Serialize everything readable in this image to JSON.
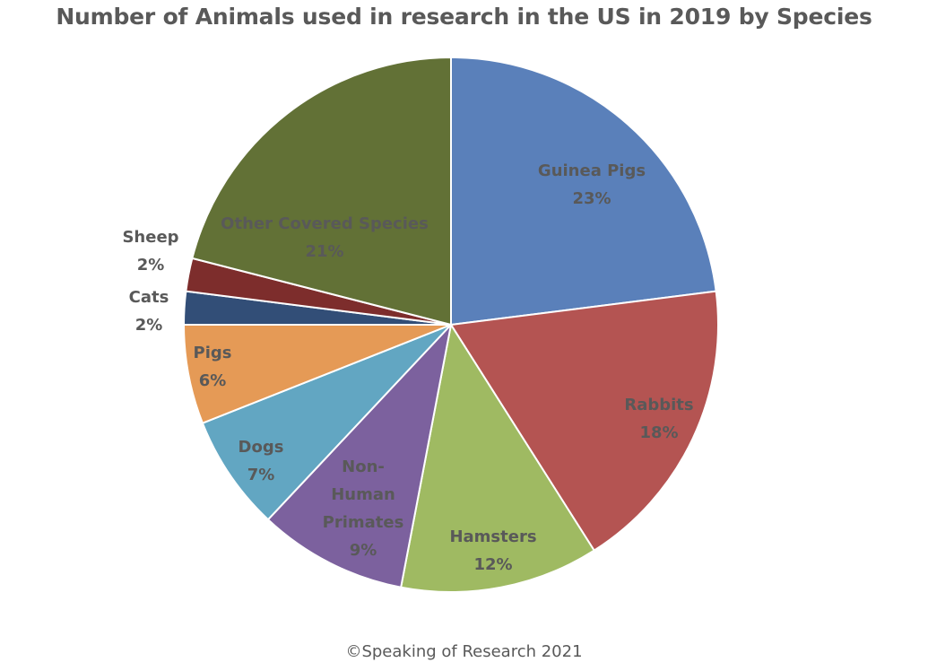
{
  "chart_data": {
    "type": "pie",
    "title": "Number of Animals used in research in the US in 2019 by Species",
    "slices": [
      {
        "label": "Guinea Pigs",
        "percent_label": "23%",
        "value": 23,
        "color": "#5a80ba"
      },
      {
        "label": "Rabbits",
        "percent_label": "18%",
        "value": 18,
        "color": "#b45452"
      },
      {
        "label": "Hamsters",
        "percent_label": "12%",
        "value": 12,
        "color": "#9fba62"
      },
      {
        "label": "Non-Human Primates",
        "percent_label": "9%",
        "value": 9,
        "color": "#7c619e"
      },
      {
        "label": "Dogs",
        "percent_label": "7%",
        "value": 7,
        "color": "#62a6c2"
      },
      {
        "label": "Pigs",
        "percent_label": "6%",
        "value": 6,
        "color": "#e59a56"
      },
      {
        "label": "Cats",
        "percent_label": "2%",
        "value": 2,
        "color": "#324e77"
      },
      {
        "label": "Sheep",
        "percent_label": "2%",
        "value": 2,
        "color": "#7d2d2c"
      },
      {
        "label": "Other Covered Species",
        "percent_label": "21%",
        "value": 21,
        "color": "#627136"
      }
    ],
    "label_color": "#595959"
  },
  "footer": {
    "copyright": "©Speaking of Research 2021"
  }
}
